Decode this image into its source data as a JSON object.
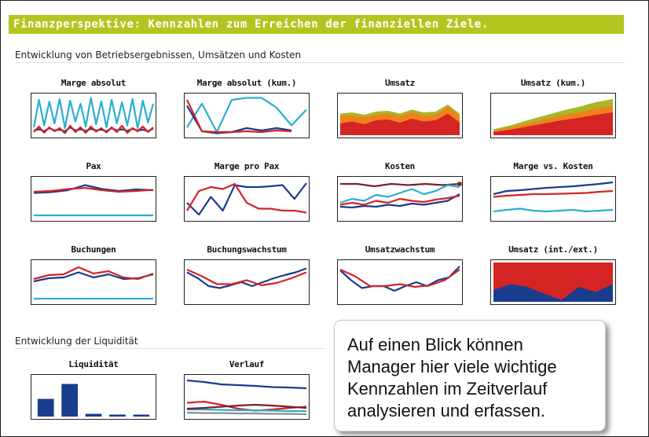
{
  "header": {
    "title": "Finanzperspektive: Kennzahlen zum Erreichen der finanziellen Ziele."
  },
  "sections": {
    "operations": "Entwicklung von Betriebsergebnissen, Umsätzen und Kosten",
    "liquidity": "Entwicklung der Liquidität"
  },
  "callout": {
    "lines": [
      "Auf einen Blick können",
      "Manager hier viele wichtige",
      "Kennzahlen im Zeitverlauf",
      "analysieren und erfassen."
    ]
  },
  "colors": {
    "banner": "#b5c520",
    "navy": "#1a3c8c",
    "red": "#d42424",
    "cyan": "#2aaed0",
    "olive": "#a8b628",
    "orange": "#f0821e",
    "gray": "#8c8c8c"
  },
  "chart_data": [
    {
      "id": "marge-absolut",
      "title": "Marge absolut",
      "type": "line",
      "ylim": [
        0,
        100
      ],
      "series": [
        {
          "color": "#2aaed0",
          "values": [
            20,
            90,
            25,
            85,
            30,
            92,
            18,
            88,
            35,
            80,
            22,
            95,
            28,
            86,
            20,
            90,
            30,
            84,
            25,
            92,
            18,
            88,
            32,
            80
          ]
        },
        {
          "color": "#1a3c8c",
          "values": [
            12,
            15,
            10,
            18,
            12,
            14,
            10,
            20,
            12,
            15,
            11,
            16,
            12,
            14,
            10,
            18,
            12,
            15,
            11,
            16,
            12,
            14,
            10,
            17
          ]
        },
        {
          "color": "#d42424",
          "values": [
            8,
            22,
            6,
            20,
            10,
            18,
            5,
            24,
            8,
            20,
            6,
            22,
            9,
            18,
            7,
            20,
            8,
            24,
            6,
            18,
            10,
            22,
            8,
            20
          ]
        }
      ]
    },
    {
      "id": "marge-absolut-kum",
      "title": "Marge absolut (kum.)",
      "type": "line",
      "ylim": [
        0,
        100
      ],
      "series": [
        {
          "color": "#2aaed0",
          "values": [
            20,
            80,
            8,
            90,
            95,
            95,
            70,
            25,
            65
          ]
        },
        {
          "color": "#1a3c8c",
          "values": [
            75,
            10,
            5,
            8,
            18,
            12,
            18,
            12,
            null
          ]
        },
        {
          "color": "#d42424",
          "values": [
            90,
            10,
            8,
            8,
            10,
            8,
            12,
            10,
            null
          ]
        }
      ]
    },
    {
      "id": "umsatz",
      "title": "Umsatz",
      "type": "area",
      "ylim": [
        0,
        100
      ],
      "series": [
        {
          "color": "#a8b628",
          "values": [
            55,
            58,
            52,
            60,
            62,
            55,
            65,
            58,
            60,
            78,
            55
          ]
        },
        {
          "color": "#f0821e",
          "values": [
            48,
            50,
            45,
            52,
            55,
            48,
            58,
            50,
            52,
            72,
            48
          ]
        },
        {
          "color": "#d42424",
          "values": [
            30,
            35,
            28,
            38,
            40,
            32,
            42,
            35,
            38,
            55,
            32
          ]
        }
      ]
    },
    {
      "id": "umsatz-kum",
      "title": "Umsatz (kum.)",
      "type": "area",
      "ylim": [
        0,
        100
      ],
      "series": [
        {
          "color": "#a8b628",
          "values": [
            15,
            25,
            38,
            50,
            62,
            72,
            84,
            92
          ]
        },
        {
          "color": "#f0821e",
          "values": [
            12,
            20,
            30,
            40,
            50,
            58,
            68,
            76
          ]
        },
        {
          "color": "#d42424",
          "values": [
            8,
            14,
            22,
            30,
            38,
            44,
            52,
            58
          ]
        }
      ]
    },
    {
      "id": "pax",
      "title": "Pax",
      "type": "line",
      "ylim": [
        0,
        100
      ],
      "series": [
        {
          "color": "#2aaed0",
          "values": [
            8,
            8,
            8,
            8,
            8,
            8,
            8,
            8
          ]
        },
        {
          "color": "#1a3c8c",
          "values": [
            65,
            67,
            72,
            85,
            75,
            70,
            74,
            72
          ]
        },
        {
          "color": "#d42424",
          "values": [
            68,
            70,
            75,
            78,
            72,
            68,
            70,
            73
          ]
        }
      ]
    },
    {
      "id": "marge-pro-pax",
      "title": "Marge pro Pax",
      "type": "line",
      "ylim": [
        0,
        100
      ],
      "series": [
        {
          "color": "#1a3c8c",
          "values": [
            40,
            10,
            55,
            20,
            85,
            80,
            80,
            82,
            85,
            50,
            90
          ]
        },
        {
          "color": "#d42424",
          "values": [
            20,
            70,
            80,
            75,
            88,
            40,
            25,
            25,
            20,
            20,
            15
          ]
        }
      ]
    },
    {
      "id": "kosten",
      "title": "Kosten",
      "type": "line",
      "ylim": [
        0,
        100
      ],
      "series": [
        {
          "color": "#7b1f2c",
          "values": [
            88,
            88,
            82,
            88,
            85,
            88,
            85,
            88
          ],
          "marker_last": true
        },
        {
          "color": "#2aaed0",
          "values": [
            40,
            50,
            45,
            60,
            55,
            65,
            75,
            62,
            70,
            85,
            80
          ]
        },
        {
          "color": "#1a3c8c",
          "values": [
            30,
            28,
            32,
            30,
            35,
            32,
            38,
            35,
            40,
            45,
            62
          ]
        },
        {
          "color": "#d42424",
          "values": [
            35,
            40,
            35,
            45,
            40,
            50,
            45,
            42,
            48,
            52,
            58
          ]
        }
      ]
    },
    {
      "id": "marge-vs-kosten",
      "title": "Marge vs. Kosten",
      "type": "line",
      "ylim": [
        0,
        100
      ],
      "series": [
        {
          "color": "#1a3c8c",
          "values": [
            62,
            70,
            72,
            75,
            78,
            80,
            82,
            85,
            88,
            92
          ]
        },
        {
          "color": "#d42424",
          "values": [
            55,
            58,
            60,
            62,
            62,
            63,
            64,
            65,
            68,
            70
          ]
        },
        {
          "color": "#2aaed0",
          "values": [
            18,
            22,
            25,
            20,
            18,
            20,
            22,
            18,
            20,
            22
          ]
        }
      ]
    },
    {
      "id": "buchungen",
      "title": "Buchungen",
      "type": "line",
      "ylim": [
        0,
        100
      ],
      "series": [
        {
          "color": "#2aaed0",
          "values": [
            8,
            8,
            8,
            8,
            8,
            8,
            8,
            8
          ]
        },
        {
          "color": "#1a3c8c",
          "values": [
            52,
            60,
            62,
            75,
            62,
            70,
            58,
            60,
            70
          ]
        },
        {
          "color": "#d42424",
          "values": [
            58,
            68,
            70,
            88,
            72,
            78,
            62,
            58,
            72
          ]
        }
      ]
    },
    {
      "id": "buchungswachstum",
      "title": "Buchungswachstum",
      "type": "line",
      "ylim": [
        0,
        100
      ],
      "series": [
        {
          "color": "#1a3c8c",
          "values": [
            75,
            60,
            40,
            35,
            42,
            50,
            40,
            50,
            60,
            68,
            75,
            85
          ]
        },
        {
          "color": "#d42424",
          "values": [
            82,
            65,
            45,
            45,
            55,
            42,
            48,
            60,
            75
          ]
        }
      ]
    },
    {
      "id": "umsatzwachstum",
      "title": "Umsatzwachstum",
      "type": "line",
      "ylim": [
        0,
        100
      ],
      "series": [
        {
          "color": "#1a3c8c",
          "values": [
            80,
            55,
            35,
            40,
            40,
            28,
            40,
            50,
            40,
            55,
            62,
            90
          ]
        },
        {
          "color": "#d42424",
          "values": [
            82,
            65,
            40,
            40,
            45,
            38,
            42,
            55,
            82
          ]
        }
      ]
    },
    {
      "id": "umsatz-int-ext",
      "title": "Umsatz (int./ext.)",
      "type": "area",
      "ylim": [
        0,
        100
      ],
      "series": [
        {
          "color": "#d42424",
          "values": [
            100,
            100,
            100,
            100,
            100,
            100,
            100,
            100
          ]
        },
        {
          "color": "#1a3c8c",
          "values": [
            30,
            45,
            38,
            20,
            5,
            38,
            25,
            45
          ]
        }
      ]
    },
    {
      "id": "liquiditaet",
      "title": "Liquidität",
      "type": "bar",
      "ylim": [
        0,
        100
      ],
      "series": [
        {
          "color": "#1a3c8c",
          "values": [
            45,
            83,
            7,
            5,
            5
          ]
        }
      ]
    },
    {
      "id": "verlauf",
      "title": "Verlauf",
      "type": "line",
      "ylim": [
        0,
        100
      ],
      "series": [
        {
          "color": "#1a3c8c",
          "values": [
            92,
            88,
            82,
            80,
            78,
            75,
            74,
            72
          ]
        },
        {
          "color": "#d42424",
          "values": [
            35,
            38,
            30,
            20,
            15,
            18,
            22,
            25
          ]
        },
        {
          "color": "#2aaed0",
          "values": [
            18,
            18,
            17,
            16,
            16,
            15,
            14,
            14
          ]
        },
        {
          "color": "#8c8c8c",
          "values": [
            10,
            9,
            9,
            8,
            8,
            7,
            7,
            6
          ]
        },
        {
          "color": "#7b1f2c",
          "values": [
            20,
            22,
            25,
            28,
            30,
            28,
            25,
            22
          ]
        }
      ]
    }
  ]
}
